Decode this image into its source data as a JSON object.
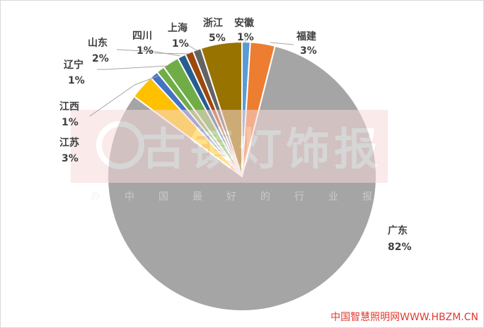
{
  "chart_data": {
    "type": "pie",
    "slices": [
      {
        "name": "安徽",
        "value": 1,
        "label": "1%",
        "color": "#5b9bd5"
      },
      {
        "name": "福建",
        "value": 3,
        "label": "3%",
        "color": "#ed7d31"
      },
      {
        "name": "广东",
        "value": 82,
        "label": "82%",
        "color": "#a5a5a5"
      },
      {
        "name": "江苏",
        "value": 3,
        "label": "3%",
        "color": "#ffc000"
      },
      {
        "name": "江西",
        "value": 1,
        "label": "1%",
        "color": "#4472c4"
      },
      {
        "name": "辽宁",
        "value": 1,
        "label": "1%",
        "color": "#70ad47"
      },
      {
        "name": "山东",
        "value": 2,
        "label": "2%",
        "color": "#70ad47"
      },
      {
        "name": "四川",
        "value": 1,
        "label": "1%",
        "color": "#255e91"
      },
      {
        "name": "上海",
        "value": 1,
        "label": "1%",
        "color": "#9e480e"
      },
      {
        "name": "浙江(a)",
        "value": 1,
        "label": "",
        "color": "#636363"
      },
      {
        "name": "浙江",
        "value": 5,
        "label": "5%",
        "color": "#997300"
      }
    ],
    "legend": "none"
  },
  "watermark": {
    "main": "古镇灯饰报",
    "slogan": "办中国最好的行业报",
    "color": "#f4d3d3"
  },
  "credit": "中国智慧照明网WWW.HBZM.CN"
}
